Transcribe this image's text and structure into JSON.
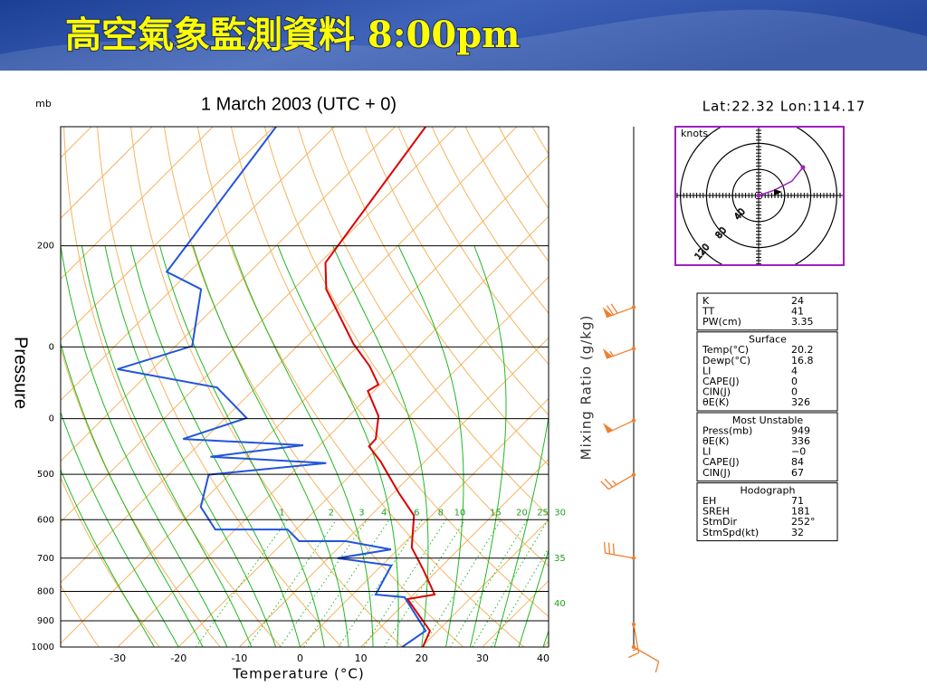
{
  "header": {
    "title": "高空氣象監測資料 8:00pm"
  },
  "chart_data": {
    "type": "skewt",
    "subtitle": "1 March 2003  (UTC + 0)",
    "pressure_unit": "mb",
    "y_label": "Pressure",
    "x_label": "Temperature (°C)",
    "mixing_ratio_label": "Mixing Ratio (g/kg)",
    "xlim": [
      -39.4,
      40.9
    ],
    "ylim": [
      124,
      1000
    ],
    "log_y": true,
    "xticks": [
      -30,
      -20,
      -10,
      0,
      10,
      20,
      30,
      40
    ],
    "yticks": [
      1000,
      900,
      800,
      700,
      600,
      500,
      {
        "value": 400,
        "label": "0"
      },
      {
        "value": 300,
        "label": "0"
      },
      200
    ],
    "series": [
      {
        "color": "#dd0000",
        "pressure": [
          124,
          214,
          238,
          296,
          324,
          349,
          358,
          396,
          434,
          447,
          475,
          539,
          590,
          671,
          734,
          810,
          825,
          937,
          1000
        ],
        "values": [
          -65.0,
          -59.1,
          -54.6,
          -41.2,
          -34.8,
          -30.3,
          -31.0,
          -25.1,
          -21.8,
          -21.7,
          -17.3,
          -9.1,
          -2.9,
          2.0,
          7.6,
          13.5,
          9.8,
          18.7,
          20.2
        ]
      },
      {
        "color": "#2255dd",
        "pressure": [
          124,
          222,
          238,
          299,
          328,
          353,
          399,
          434,
          445,
          466,
          478,
          501,
          570,
          624,
          624,
          654,
          654,
          676,
          700,
          721,
          810,
          819,
          937,
          1000
        ],
        "values": [
          -89.6,
          -83.7,
          -75.2,
          -67.3,
          -75.8,
          -56.4,
          -46.5,
          -53.5,
          -32.7,
          -46.1,
          -26.0,
          -43.4,
          -39.4,
          -33.3,
          -21.4,
          -17.6,
          -9.9,
          -1.1,
          -8.5,
          1.6,
          3.8,
          9.0,
          18.0,
          16.8
        ]
      }
    ],
    "mixing_ratios": [
      1,
      2,
      3,
      4,
      6,
      8,
      10,
      15,
      20,
      25,
      30
    ],
    "moist_labels": [
      35,
      40
    ],
    "winds": {
      "pressure": [
        256,
        302,
        403,
        501,
        700,
        913,
        1000
      ],
      "direction": [
        250,
        250,
        245,
        240,
        280,
        170,
        120
      ],
      "speed": [
        70,
        55,
        50,
        25,
        30,
        15,
        10
      ],
      "color": "#f08030"
    }
  },
  "hodograph": {
    "location": "Lat:22.32 Lon:114.17",
    "title": "knots",
    "color": "#a020c0",
    "rings": [
      40,
      80,
      120
    ],
    "u": [
      0,
      24,
      51,
      68
    ],
    "v": [
      0,
      8,
      22,
      43
    ]
  },
  "indices": [
    {
      "rows": [
        [
          "K",
          "24"
        ],
        [
          "TT",
          "41"
        ],
        [
          "PW(cm)",
          "3.35"
        ]
      ]
    },
    {
      "title": "Surface",
      "rows": [
        [
          "Temp(°C)",
          "20.2"
        ],
        [
          "Dewp(°C)",
          "16.8"
        ],
        [
          "LI",
          "4"
        ],
        [
          "CAPE(J)",
          "0"
        ],
        [
          "CIN(J)",
          "0"
        ],
        [
          "θE(K)",
          "326"
        ]
      ]
    },
    {
      "title": "Most Unstable",
      "rows": [
        [
          "Press(mb)",
          "949"
        ],
        [
          "θE(K)",
          "336"
        ],
        [
          "LI",
          "−0"
        ],
        [
          "CAPE(J)",
          "84"
        ],
        [
          "CIN(J)",
          "67"
        ]
      ]
    },
    {
      "title": "Hodograph",
      "rows": [
        [
          "EH",
          "71"
        ],
        [
          "SREH",
          "181"
        ],
        [
          "StmDir",
          "252°"
        ],
        [
          "StmSpd(kt)",
          "32"
        ]
      ]
    }
  ]
}
